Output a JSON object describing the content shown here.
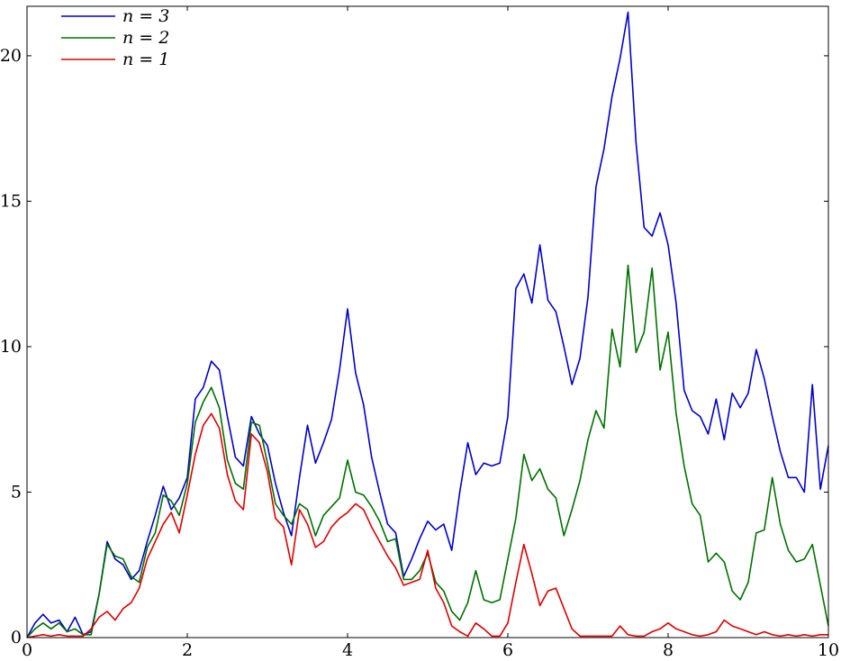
{
  "chart_data": {
    "type": "line",
    "title": "",
    "xlabel": "",
    "ylabel": "",
    "xlim": [
      0,
      10
    ],
    "ylim": [
      0,
      21.7
    ],
    "x_ticks": [
      0,
      2,
      4,
      6,
      8,
      10
    ],
    "y_ticks": [
      0,
      5,
      10,
      15,
      20
    ],
    "grid": false,
    "legend_position": "top-left",
    "series": [
      {
        "name": "n = 3",
        "color": "#0000cc",
        "points": [
          [
            0,
            0
          ],
          [
            0.1,
            0.5
          ],
          [
            0.2,
            0.8
          ],
          [
            0.3,
            0.5
          ],
          [
            0.4,
            0.6
          ],
          [
            0.5,
            0.2
          ],
          [
            0.6,
            0.7
          ],
          [
            0.7,
            0.1
          ],
          [
            0.8,
            0.2
          ],
          [
            0.9,
            1.5
          ],
          [
            1.0,
            3.3
          ],
          [
            1.1,
            2.7
          ],
          [
            1.2,
            2.5
          ],
          [
            1.3,
            2.0
          ],
          [
            1.4,
            2.3
          ],
          [
            1.5,
            3.3
          ],
          [
            1.6,
            4.2
          ],
          [
            1.7,
            5.2
          ],
          [
            1.8,
            4.4
          ],
          [
            1.9,
            4.8
          ],
          [
            2.0,
            5.5
          ],
          [
            2.1,
            8.2
          ],
          [
            2.2,
            8.6
          ],
          [
            2.3,
            9.5
          ],
          [
            2.4,
            9.2
          ],
          [
            2.5,
            7.6
          ],
          [
            2.6,
            6.2
          ],
          [
            2.7,
            5.9
          ],
          [
            2.8,
            7.6
          ],
          [
            2.9,
            7.0
          ],
          [
            3.0,
            6.6
          ],
          [
            3.1,
            5.3
          ],
          [
            3.2,
            4.3
          ],
          [
            3.3,
            3.5
          ],
          [
            3.4,
            5.5
          ],
          [
            3.5,
            7.3
          ],
          [
            3.6,
            6.0
          ],
          [
            3.7,
            6.7
          ],
          [
            3.8,
            7.5
          ],
          [
            3.9,
            9.2
          ],
          [
            4.0,
            11.3
          ],
          [
            4.1,
            9.1
          ],
          [
            4.2,
            8.0
          ],
          [
            4.3,
            6.2
          ],
          [
            4.4,
            5.0
          ],
          [
            4.5,
            3.9
          ],
          [
            4.6,
            3.6
          ],
          [
            4.7,
            2.1
          ],
          [
            4.8,
            2.7
          ],
          [
            4.9,
            3.4
          ],
          [
            5.0,
            4.0
          ],
          [
            5.1,
            3.7
          ],
          [
            5.2,
            3.9
          ],
          [
            5.3,
            3.0
          ],
          [
            5.4,
            5.0
          ],
          [
            5.5,
            6.7
          ],
          [
            5.6,
            5.6
          ],
          [
            5.7,
            6.0
          ],
          [
            5.8,
            5.9
          ],
          [
            5.9,
            6.0
          ],
          [
            6.0,
            7.6
          ],
          [
            6.1,
            12.0
          ],
          [
            6.2,
            12.5
          ],
          [
            6.3,
            11.5
          ],
          [
            6.4,
            13.5
          ],
          [
            6.5,
            11.6
          ],
          [
            6.6,
            11.2
          ],
          [
            6.7,
            10.0
          ],
          [
            6.8,
            8.7
          ],
          [
            6.9,
            9.6
          ],
          [
            7.0,
            11.7
          ],
          [
            7.1,
            15.5
          ],
          [
            7.2,
            16.8
          ],
          [
            7.3,
            18.6
          ],
          [
            7.4,
            19.9
          ],
          [
            7.5,
            21.5
          ],
          [
            7.6,
            17.0
          ],
          [
            7.7,
            14.1
          ],
          [
            7.8,
            13.8
          ],
          [
            7.9,
            14.6
          ],
          [
            8.0,
            13.5
          ],
          [
            8.1,
            11.5
          ],
          [
            8.2,
            8.5
          ],
          [
            8.3,
            7.8
          ],
          [
            8.4,
            7.6
          ],
          [
            8.5,
            7.0
          ],
          [
            8.6,
            8.2
          ],
          [
            8.7,
            6.8
          ],
          [
            8.8,
            8.4
          ],
          [
            8.9,
            7.9
          ],
          [
            9.0,
            8.4
          ],
          [
            9.1,
            9.9
          ],
          [
            9.2,
            8.9
          ],
          [
            9.3,
            7.6
          ],
          [
            9.4,
            6.4
          ],
          [
            9.5,
            5.5
          ],
          [
            9.6,
            5.5
          ],
          [
            9.7,
            5.0
          ],
          [
            9.8,
            8.7
          ],
          [
            9.9,
            5.1
          ],
          [
            10.0,
            6.6
          ]
        ]
      },
      {
        "name": "n = 2",
        "color": "#007000",
        "points": [
          [
            0,
            0
          ],
          [
            0.1,
            0.3
          ],
          [
            0.2,
            0.5
          ],
          [
            0.3,
            0.3
          ],
          [
            0.4,
            0.5
          ],
          [
            0.5,
            0.2
          ],
          [
            0.6,
            0.3
          ],
          [
            0.7,
            0.1
          ],
          [
            0.8,
            0.1
          ],
          [
            0.9,
            1.5
          ],
          [
            1.0,
            3.2
          ],
          [
            1.1,
            2.8
          ],
          [
            1.2,
            2.7
          ],
          [
            1.3,
            2.1
          ],
          [
            1.4,
            1.9
          ],
          [
            1.5,
            3.1
          ],
          [
            1.6,
            3.6
          ],
          [
            1.7,
            4.9
          ],
          [
            1.8,
            4.7
          ],
          [
            1.9,
            4.2
          ],
          [
            2.0,
            5.3
          ],
          [
            2.1,
            7.4
          ],
          [
            2.2,
            8.1
          ],
          [
            2.3,
            8.6
          ],
          [
            2.4,
            7.9
          ],
          [
            2.5,
            6.1
          ],
          [
            2.6,
            5.3
          ],
          [
            2.7,
            5.1
          ],
          [
            2.8,
            7.4
          ],
          [
            2.9,
            7.3
          ],
          [
            3.0,
            6.0
          ],
          [
            3.1,
            4.6
          ],
          [
            3.2,
            4.2
          ],
          [
            3.3,
            3.9
          ],
          [
            3.4,
            4.6
          ],
          [
            3.5,
            4.4
          ],
          [
            3.6,
            3.5
          ],
          [
            3.7,
            4.2
          ],
          [
            3.8,
            4.5
          ],
          [
            3.9,
            4.8
          ],
          [
            4.0,
            6.1
          ],
          [
            4.1,
            5.0
          ],
          [
            4.2,
            4.9
          ],
          [
            4.3,
            4.5
          ],
          [
            4.4,
            4.0
          ],
          [
            4.5,
            3.3
          ],
          [
            4.6,
            3.4
          ],
          [
            4.7,
            2.0
          ],
          [
            4.8,
            2.0
          ],
          [
            4.9,
            2.3
          ],
          [
            5.0,
            2.9
          ],
          [
            5.1,
            1.9
          ],
          [
            5.2,
            1.6
          ],
          [
            5.3,
            0.9
          ],
          [
            5.4,
            0.6
          ],
          [
            5.5,
            1.2
          ],
          [
            5.6,
            2.3
          ],
          [
            5.7,
            1.3
          ],
          [
            5.8,
            1.2
          ],
          [
            5.9,
            1.3
          ],
          [
            6.0,
            2.7
          ],
          [
            6.1,
            4.1
          ],
          [
            6.2,
            6.3
          ],
          [
            6.3,
            5.4
          ],
          [
            6.4,
            5.8
          ],
          [
            6.5,
            5.1
          ],
          [
            6.6,
            4.8
          ],
          [
            6.7,
            3.5
          ],
          [
            6.8,
            4.4
          ],
          [
            6.9,
            5.4
          ],
          [
            7.0,
            6.8
          ],
          [
            7.1,
            7.8
          ],
          [
            7.2,
            7.2
          ],
          [
            7.3,
            10.6
          ],
          [
            7.4,
            9.3
          ],
          [
            7.5,
            12.8
          ],
          [
            7.6,
            9.8
          ],
          [
            7.7,
            10.5
          ],
          [
            7.8,
            12.7
          ],
          [
            7.9,
            9.2
          ],
          [
            8.0,
            10.5
          ],
          [
            8.1,
            7.7
          ],
          [
            8.2,
            5.9
          ],
          [
            8.3,
            4.6
          ],
          [
            8.4,
            4.2
          ],
          [
            8.5,
            2.6
          ],
          [
            8.6,
            2.9
          ],
          [
            8.7,
            2.6
          ],
          [
            8.8,
            1.6
          ],
          [
            8.9,
            1.3
          ],
          [
            9.0,
            1.9
          ],
          [
            9.1,
            3.6
          ],
          [
            9.2,
            3.7
          ],
          [
            9.3,
            5.5
          ],
          [
            9.4,
            3.9
          ],
          [
            9.5,
            3.0
          ],
          [
            9.6,
            2.6
          ],
          [
            9.7,
            2.7
          ],
          [
            9.8,
            3.2
          ],
          [
            9.9,
            1.8
          ],
          [
            10.0,
            0.4
          ]
        ]
      },
      {
        "name": "n = 1",
        "color": "#dd0000",
        "points": [
          [
            0,
            0
          ],
          [
            0.1,
            0.05
          ],
          [
            0.2,
            0.1
          ],
          [
            0.3,
            0.05
          ],
          [
            0.4,
            0.1
          ],
          [
            0.5,
            0.05
          ],
          [
            0.6,
            0.05
          ],
          [
            0.7,
            0.05
          ],
          [
            0.8,
            0.3
          ],
          [
            0.9,
            0.7
          ],
          [
            1.0,
            0.9
          ],
          [
            1.1,
            0.6
          ],
          [
            1.2,
            1.0
          ],
          [
            1.3,
            1.2
          ],
          [
            1.4,
            1.7
          ],
          [
            1.5,
            2.7
          ],
          [
            1.6,
            3.3
          ],
          [
            1.7,
            3.9
          ],
          [
            1.8,
            4.3
          ],
          [
            1.9,
            3.6
          ],
          [
            2.0,
            4.9
          ],
          [
            2.1,
            6.3
          ],
          [
            2.2,
            7.3
          ],
          [
            2.3,
            7.7
          ],
          [
            2.4,
            7.2
          ],
          [
            2.5,
            5.6
          ],
          [
            2.6,
            4.7
          ],
          [
            2.7,
            4.4
          ],
          [
            2.8,
            7.0
          ],
          [
            2.9,
            6.7
          ],
          [
            3.0,
            5.7
          ],
          [
            3.1,
            4.1
          ],
          [
            3.2,
            3.8
          ],
          [
            3.3,
            2.5
          ],
          [
            3.4,
            4.4
          ],
          [
            3.5,
            3.9
          ],
          [
            3.6,
            3.1
          ],
          [
            3.7,
            3.3
          ],
          [
            3.8,
            3.8
          ],
          [
            3.9,
            4.1
          ],
          [
            4.0,
            4.3
          ],
          [
            4.1,
            4.6
          ],
          [
            4.2,
            4.4
          ],
          [
            4.3,
            3.8
          ],
          [
            4.4,
            3.3
          ],
          [
            4.5,
            2.8
          ],
          [
            4.6,
            2.4
          ],
          [
            4.7,
            1.8
          ],
          [
            4.8,
            1.9
          ],
          [
            4.9,
            2.0
          ],
          [
            5.0,
            3.0
          ],
          [
            5.1,
            1.7
          ],
          [
            5.2,
            1.2
          ],
          [
            5.3,
            0.4
          ],
          [
            5.4,
            0.2
          ],
          [
            5.5,
            0.05
          ],
          [
            5.6,
            0.5
          ],
          [
            5.7,
            0.3
          ],
          [
            5.8,
            0.05
          ],
          [
            5.9,
            0.05
          ],
          [
            6.0,
            0.5
          ],
          [
            6.1,
            1.9
          ],
          [
            6.2,
            3.2
          ],
          [
            6.3,
            2.2
          ],
          [
            6.4,
            1.1
          ],
          [
            6.5,
            1.6
          ],
          [
            6.6,
            1.7
          ],
          [
            6.7,
            1.0
          ],
          [
            6.8,
            0.3
          ],
          [
            6.9,
            0.05
          ],
          [
            7.0,
            0.05
          ],
          [
            7.1,
            0.05
          ],
          [
            7.2,
            0.05
          ],
          [
            7.3,
            0.05
          ],
          [
            7.4,
            0.4
          ],
          [
            7.5,
            0.1
          ],
          [
            7.6,
            0.05
          ],
          [
            7.7,
            0.05
          ],
          [
            7.8,
            0.2
          ],
          [
            7.9,
            0.3
          ],
          [
            8.0,
            0.5
          ],
          [
            8.1,
            0.3
          ],
          [
            8.2,
            0.2
          ],
          [
            8.3,
            0.1
          ],
          [
            8.4,
            0.05
          ],
          [
            8.5,
            0.1
          ],
          [
            8.6,
            0.2
          ],
          [
            8.7,
            0.6
          ],
          [
            8.8,
            0.4
          ],
          [
            8.9,
            0.3
          ],
          [
            9.0,
            0.2
          ],
          [
            9.1,
            0.1
          ],
          [
            9.2,
            0.2
          ],
          [
            9.3,
            0.1
          ],
          [
            9.4,
            0.05
          ],
          [
            9.5,
            0.1
          ],
          [
            9.6,
            0.05
          ],
          [
            9.7,
            0.1
          ],
          [
            9.8,
            0.05
          ],
          [
            9.9,
            0.1
          ],
          [
            10.0,
            0.1
          ]
        ]
      }
    ]
  }
}
